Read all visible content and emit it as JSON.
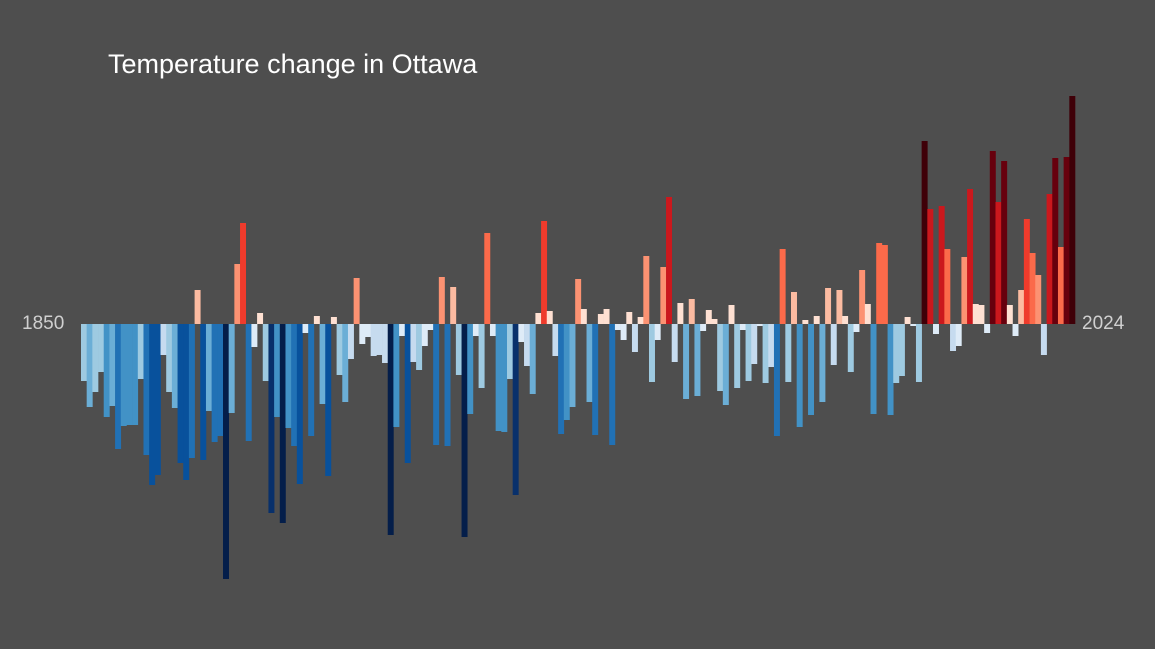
{
  "chart_data": {
    "type": "bar",
    "title": "Temperature change in Ottawa",
    "x_start_label": "1850",
    "x_end_label": "2024",
    "x_range": [
      1850,
      2024
    ],
    "grid": false,
    "legend": "none",
    "baseline": 0,
    "values": [
      -0.57,
      -0.83,
      -0.68,
      -0.48,
      -0.93,
      -0.82,
      -1.25,
      -1.02,
      -1.01,
      -1.01,
      -0.55,
      -1.31,
      -1.61,
      -1.51,
      -0.31,
      -0.68,
      -0.84,
      -1.39,
      -1.56,
      -1.34,
      0.34,
      -1.36,
      -0.87,
      -1.18,
      -1.12,
      -2.55,
      -0.89,
      0.6,
      1.01,
      -1.17,
      -0.23,
      0.11,
      -0.57,
      -1.89,
      -0.93,
      -1.99,
      -1.04,
      -1.22,
      -1.6,
      -0.09,
      -1.12,
      0.08,
      -0.8,
      -1.52,
      0.07,
      -0.51,
      -0.78,
      -0.35,
      0.46,
      -0.2,
      -0.13,
      -0.32,
      -0.31,
      -0.39,
      -2.11,
      -1.03,
      -0.12,
      -1.39,
      -0.38,
      -0.46,
      -0.22,
      -0.06,
      -1.21,
      0.47,
      -1.22,
      0.37,
      -0.51,
      -2.13,
      -0.9,
      -0.12,
      -0.64,
      0.91,
      -0.12,
      -1.07,
      -1.08,
      -0.55,
      -1.71,
      -0.18,
      -0.42,
      -0.7,
      0.11,
      1.03,
      0.13,
      -0.32,
      -1.1,
      -0.96,
      -0.83,
      0.45,
      0.15,
      -0.78,
      -1.11,
      0.1,
      0.15,
      -1.21,
      -0.06,
      -0.16,
      0.12,
      -0.28,
      0.07,
      0.68,
      -0.58,
      -0.16,
      0.57,
      1.27,
      -0.38,
      0.21,
      -0.75,
      0.25,
      -0.72,
      -0.07,
      0.14,
      0.05,
      -0.67,
      -0.81,
      0.19,
      -0.64,
      -0.06,
      -0.57,
      -0.4,
      -0.02,
      -0.59,
      -0.43,
      -1.12,
      0.75,
      -0.58,
      0.32,
      -1.03,
      0.04,
      -0.91,
      0.08,
      -0.78,
      0.36,
      -0.41,
      0.34,
      0.08,
      -0.48,
      -0.08,
      0.54,
      0.2,
      -0.9,
      0.81,
      0.79,
      -0.91,
      -0.59,
      -0.52,
      0.07,
      -0.02,
      -0.58,
      1.83,
      1.15,
      -0.1,
      1.18,
      0.75,
      -0.27,
      -0.22,
      0.67,
      1.35,
      0.2,
      0.19,
      -0.09,
      1.73,
      1.22,
      1.63,
      0.19,
      -0.12,
      0.34,
      1.05,
      0.71,
      0.49,
      -0.31,
      1.3,
      1.66,
      0.77,
      1.67,
      2.28
    ],
    "colors": {
      "background": "#4e4e4e",
      "cold_scale": [
        "#deebf7",
        "#c6dbef",
        "#9ecae1",
        "#6baed6",
        "#4292c6",
        "#2171b5",
        "#08519c",
        "#08306b",
        "#041e4a"
      ],
      "warm_scale": [
        "#fee0d2",
        "#fcbba1",
        "#fc9272",
        "#fb6a4a",
        "#ef3b2c",
        "#cb181d",
        "#67000d",
        "#3f0008"
      ]
    }
  }
}
